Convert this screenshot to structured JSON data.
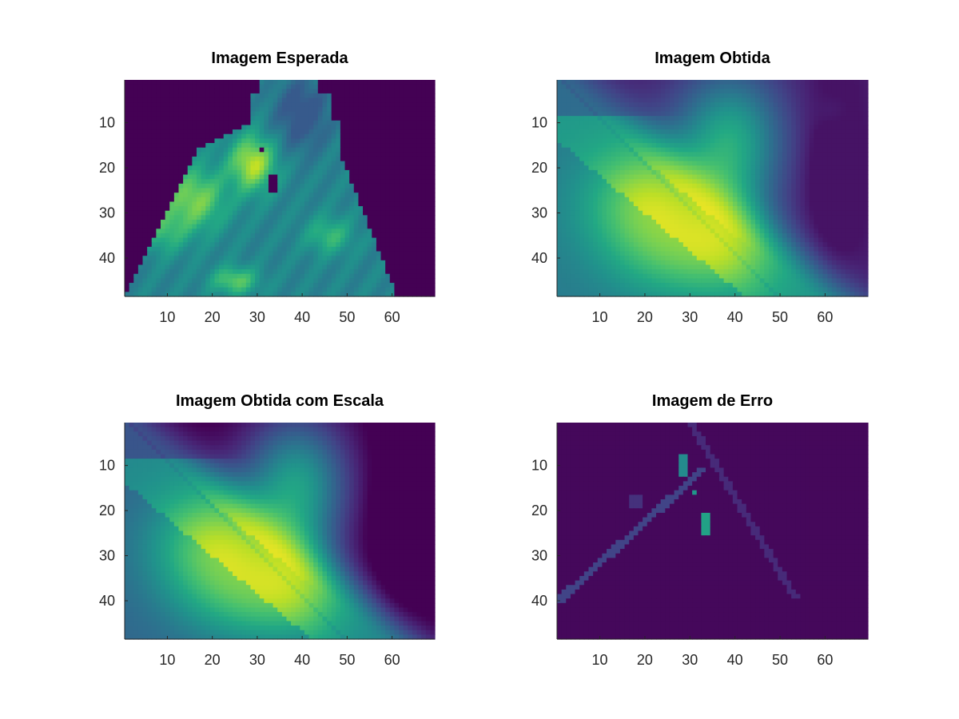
{
  "chart_data": [
    {
      "type": "heatmap",
      "title": "Imagem Esperada",
      "colormap": "viridis",
      "x_range": [
        0.5,
        69.5
      ],
      "y_range": [
        0.5,
        48.5
      ],
      "y_direction": "down",
      "xticks": [
        10,
        20,
        30,
        40,
        50,
        60
      ],
      "yticks": [
        10,
        20,
        30,
        40
      ],
      "grid": false
    },
    {
      "type": "heatmap",
      "title": "Imagem Obtida",
      "colormap": "viridis",
      "x_range": [
        0.5,
        69.5
      ],
      "y_range": [
        0.5,
        48.5
      ],
      "y_direction": "down",
      "xticks": [
        10,
        20,
        30,
        40,
        50,
        60
      ],
      "yticks": [
        10,
        20,
        30,
        40
      ],
      "grid": false
    },
    {
      "type": "heatmap",
      "title": "Imagem Obtida com Escala",
      "colormap": "viridis",
      "x_range": [
        0.5,
        69.5
      ],
      "y_range": [
        0.5,
        48.5
      ],
      "y_direction": "down",
      "xticks": [
        10,
        20,
        30,
        40,
        50,
        60
      ],
      "yticks": [
        10,
        20,
        30,
        40
      ],
      "grid": false
    },
    {
      "type": "heatmap",
      "title": "Imagem de Erro",
      "colormap": "viridis",
      "x_range": [
        0.5,
        69.5
      ],
      "y_range": [
        0.5,
        48.5
      ],
      "y_direction": "down",
      "xticks": [
        10,
        20,
        30,
        40,
        50,
        60
      ],
      "yticks": [
        10,
        20,
        30,
        40
      ],
      "grid": false
    }
  ]
}
